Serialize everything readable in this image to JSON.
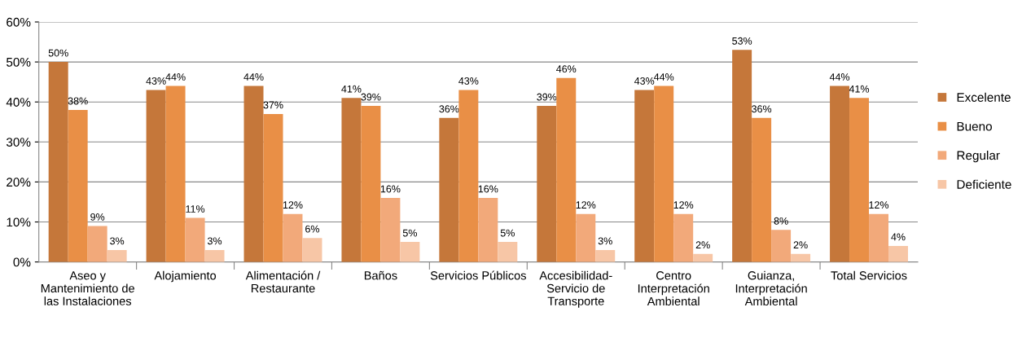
{
  "chart_data": {
    "type": "bar",
    "categories": [
      "Aseo y\nMantenimiento de\nlas Instalaciones",
      "Alojamiento",
      "Alimentación /\nRestaurante",
      "Baños",
      "Servicios Públicos",
      "Accesibilidad-\nServicio de\nTransporte",
      "Centro\nInterpretación\nAmbiental",
      "Guianza,\nInterpretación\nAmbiental",
      "Total Servicios"
    ],
    "series": [
      {
        "name": "Excelente",
        "color": "#c5773a",
        "values": [
          50,
          43,
          44,
          41,
          36,
          39,
          43,
          53,
          44
        ],
        "value_labels": [
          "50%",
          "43%",
          "44%",
          "41%",
          "36%",
          "39%",
          "43%",
          "53%",
          "44%"
        ]
      },
      {
        "name": "Bueno",
        "color": "#e98f46",
        "values": [
          38,
          44,
          37,
          39,
          43,
          46,
          44,
          36,
          41
        ],
        "value_labels": [
          "38%",
          "44%",
          "37%",
          "39%",
          "43%",
          "46%",
          "44%",
          "36%",
          "41%"
        ]
      },
      {
        "name": "Regular",
        "color": "#f2a97a",
        "values": [
          9,
          11,
          12,
          16,
          16,
          12,
          12,
          8,
          12
        ],
        "value_labels": [
          "9%",
          "11%",
          "12%",
          "16%",
          "16%",
          "12%",
          "12%",
          "8%",
          "12%"
        ]
      },
      {
        "name": "Deficiente",
        "color": "#f7c6a6",
        "values": [
          3,
          3,
          6,
          5,
          5,
          3,
          2,
          2,
          4
        ],
        "value_labels": [
          "3%",
          "3%",
          "6%",
          "5%",
          "5%",
          "3%",
          "2%",
          "2%",
          "4%"
        ]
      }
    ],
    "ylim": [
      0,
      60
    ],
    "yticks": [
      {
        "value": 0,
        "label": "0%"
      },
      {
        "value": 10,
        "label": "10%"
      },
      {
        "value": 20,
        "label": "20%"
      },
      {
        "value": 30,
        "label": "30%"
      },
      {
        "value": 40,
        "label": "40%"
      },
      {
        "value": 50,
        "label": "50%"
      },
      {
        "value": 60,
        "label": "60%"
      }
    ],
    "grid": "y",
    "legend": "right"
  }
}
